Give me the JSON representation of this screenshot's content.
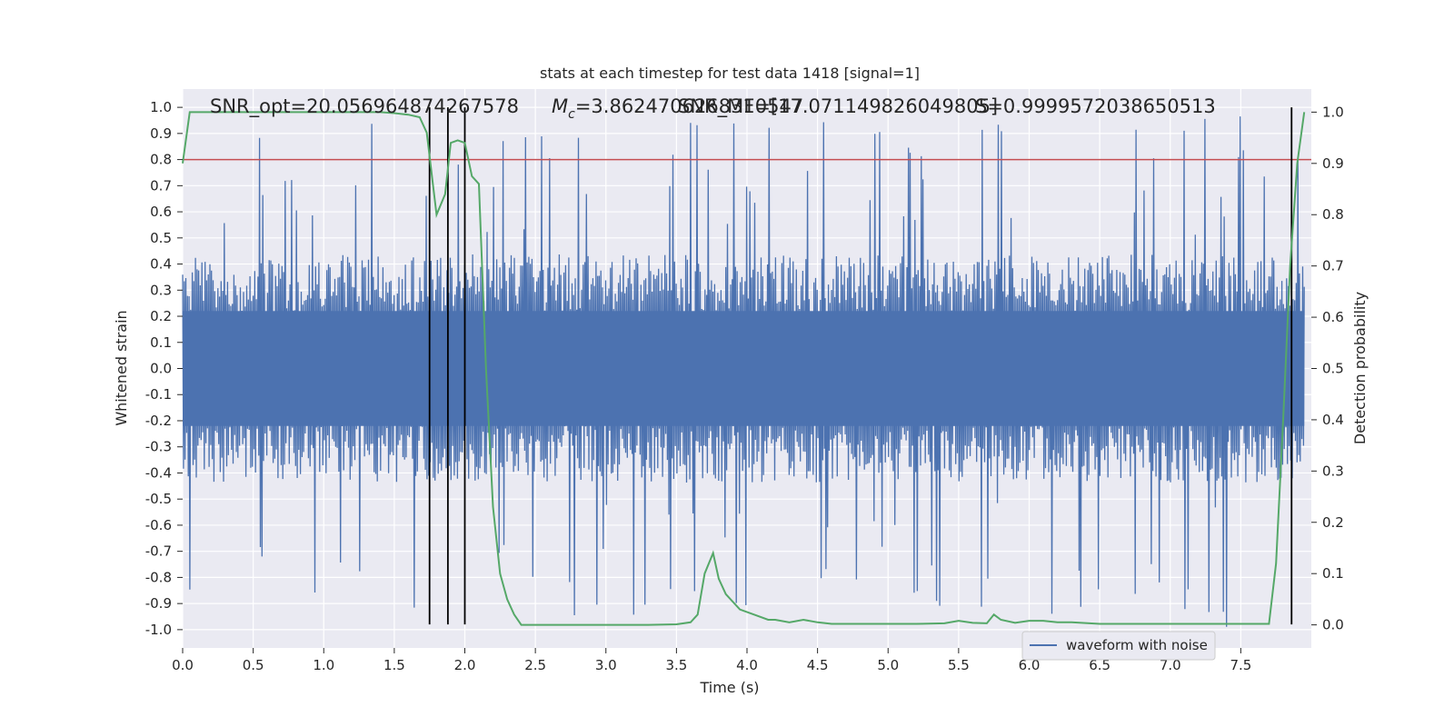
{
  "chart_data": {
    "type": "line",
    "title": "stats at each timestep for test data 1418 [signal=1]",
    "xlabel": "Time (s)",
    "ylabel": "Whitened strain",
    "y2label": "Detection probability",
    "xlim": [
      0.0,
      8.0
    ],
    "ylim": [
      -1.07,
      1.07
    ],
    "y2lim": [
      -0.045,
      1.045
    ],
    "xticks": [
      "0.0",
      "0.5",
      "1.0",
      "1.5",
      "2.0",
      "2.5",
      "3.0",
      "3.5",
      "4.0",
      "4.5",
      "5.0",
      "5.5",
      "6.0",
      "6.5",
      "7.0",
      "7.5"
    ],
    "yticks": [
      "1.0",
      "0.9",
      "0.8",
      "0.7",
      "0.6",
      "0.5",
      "0.4",
      "0.3",
      "0.2",
      "0.1",
      "0.0",
      "-0.1",
      "-0.2",
      "-0.3",
      "-0.4",
      "-0.5",
      "-0.6",
      "-0.7",
      "-0.8",
      "-0.9",
      "-1.0"
    ],
    "y2ticks": [
      "1.0",
      "0.9",
      "0.8",
      "0.7",
      "0.6",
      "0.5",
      "0.4",
      "0.3",
      "0.2",
      "0.1",
      "0.0"
    ],
    "grid": true,
    "legend": {
      "position": "lower-right",
      "entries": [
        "waveform with noise"
      ]
    },
    "annotations": {
      "snr": "SNR_opt=20.056964874267578",
      "mc": "=3.8624706268310547",
      "snr_mf": "SNR_MF=[17.071149826049805]",
      "s": "S=0.9999572038650513"
    },
    "threshold": {
      "value": 0.8,
      "axis": "left",
      "color": "#c44e52"
    },
    "vlines_x": [
      1.75,
      1.88,
      2.0,
      7.86
    ],
    "series": [
      {
        "name": "waveform with noise",
        "color": "#4c72b0",
        "kind": "noise",
        "envelope_typical": 0.38,
        "envelope_max": 0.99,
        "samples_t_start": 0.0,
        "samples_t_end": 7.95
      },
      {
        "color": "#55a868",
        "axis": "right",
        "x": [
          0.0,
          0.05,
          0.1,
          0.3,
          0.5,
          0.8,
          1.0,
          1.2,
          1.4,
          1.5,
          1.6,
          1.68,
          1.73,
          1.8,
          1.86,
          1.9,
          1.95,
          2.0,
          2.05,
          2.1,
          2.15,
          2.2,
          2.25,
          2.3,
          2.35,
          2.4,
          2.45,
          2.5,
          2.7,
          2.9,
          3.0,
          3.1,
          3.3,
          3.5,
          3.6,
          3.65,
          3.7,
          3.76,
          3.8,
          3.85,
          3.95,
          4.05,
          4.15,
          4.2,
          4.3,
          4.4,
          4.5,
          4.6,
          4.8,
          5.0,
          5.2,
          5.4,
          5.5,
          5.6,
          5.7,
          5.75,
          5.8,
          5.9,
          6.0,
          6.1,
          6.2,
          6.3,
          6.5,
          7.0,
          7.5,
          7.7,
          7.75,
          7.8,
          7.85,
          7.9,
          7.95
        ],
        "values": [
          0.9,
          1.0,
          1.0,
          1.0,
          1.0,
          1.0,
          1.0,
          1.0,
          1.0,
          0.998,
          0.995,
          0.99,
          0.96,
          0.8,
          0.84,
          0.94,
          0.945,
          0.94,
          0.875,
          0.86,
          0.5,
          0.23,
          0.1,
          0.05,
          0.02,
          0.0,
          0.0,
          0.0,
          0.0,
          0.0,
          0.0,
          0.0,
          0.0,
          0.001,
          0.005,
          0.02,
          0.1,
          0.14,
          0.09,
          0.06,
          0.03,
          0.02,
          0.01,
          0.01,
          0.005,
          0.01,
          0.005,
          0.002,
          0.002,
          0.002,
          0.002,
          0.003,
          0.008,
          0.004,
          0.003,
          0.02,
          0.01,
          0.004,
          0.008,
          0.008,
          0.005,
          0.005,
          0.002,
          0.002,
          0.002,
          0.002,
          0.12,
          0.4,
          0.7,
          0.9,
          1.0
        ]
      }
    ]
  }
}
